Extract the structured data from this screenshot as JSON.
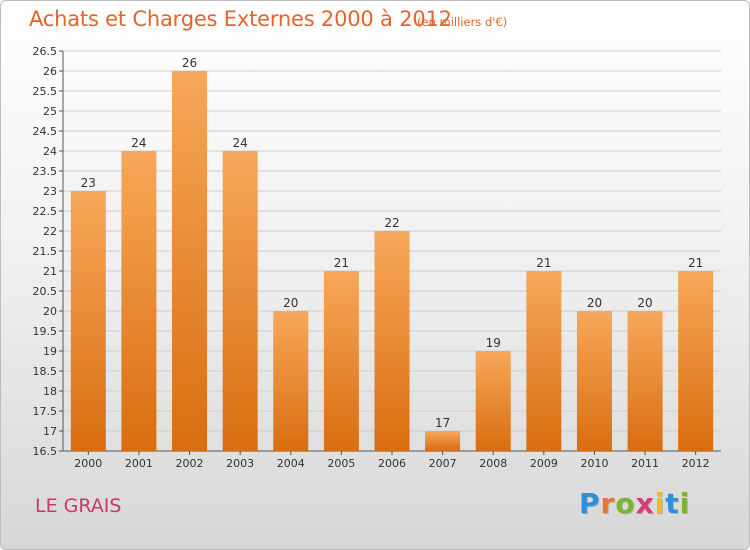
{
  "title": "Achats et Charges Externes 2000 à 2012",
  "subtitle": "(en milliers d'€)",
  "commune": "LE GRAIS",
  "logo": [
    "P",
    "r",
    "o",
    "x",
    "i",
    "t",
    "i"
  ],
  "colors": {
    "bar_top": "#f7a85a",
    "bar_bottom": "#d96d10",
    "title": "#e8622b",
    "commune": "#d0356b",
    "grid": "#cfcfcf"
  },
  "chart_data": {
    "type": "bar",
    "categories": [
      "2000",
      "2001",
      "2002",
      "2003",
      "2004",
      "2005",
      "2006",
      "2007",
      "2008",
      "2009",
      "2010",
      "2011",
      "2012"
    ],
    "values": [
      23,
      24,
      26,
      24,
      20,
      21,
      22,
      17,
      19,
      21,
      20,
      20,
      21
    ],
    "data_labels": [
      "23",
      "24",
      "26",
      "24",
      "20",
      "21",
      "22",
      "17",
      "19",
      "21",
      "20",
      "20",
      "21"
    ],
    "title": "Achats et Charges Externes 2000 à 2012",
    "xlabel": "",
    "ylabel": "",
    "ylim": [
      16.5,
      26.5
    ],
    "yticks": [
      "16.5",
      "17",
      "17.5",
      "18",
      "18.5",
      "19",
      "19.5",
      "20",
      "20.5",
      "21",
      "21.5",
      "22",
      "22.5",
      "23",
      "23.5",
      "24",
      "24.5",
      "25",
      "25.5",
      "26",
      "26.5"
    ],
    "grid": true,
    "legend": "none"
  }
}
